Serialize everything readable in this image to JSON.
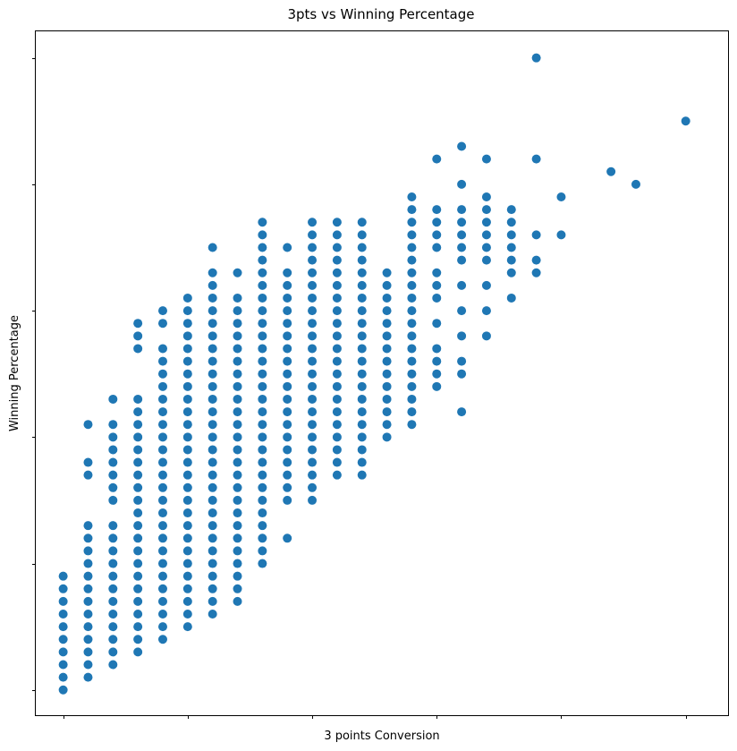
{
  "chart_data": {
    "type": "scatter",
    "title": "3pts vs Winning Percentage",
    "xlabel": "3 points Conversion",
    "ylabel": "Winning Percentage",
    "x_tick_labels": [],
    "y_tick_labels": [],
    "xlim": [
      -2.2,
      53.4
    ],
    "ylim": [
      -2.0,
      52.1
    ],
    "grid": false,
    "legend": "none",
    "marker_color": "#1f77b4",
    "x_ticks": [
      0,
      10,
      20,
      30,
      40,
      50
    ],
    "y_ticks": [
      0,
      10,
      20,
      30,
      40,
      50
    ],
    "points": [
      [
        0,
        0
      ],
      [
        0,
        1
      ],
      [
        0,
        2
      ],
      [
        0,
        3
      ],
      [
        0,
        4
      ],
      [
        0,
        5
      ],
      [
        0,
        6
      ],
      [
        0,
        7
      ],
      [
        0,
        8
      ],
      [
        0,
        9
      ],
      [
        2,
        1
      ],
      [
        2,
        2
      ],
      [
        2,
        3
      ],
      [
        2,
        4
      ],
      [
        2,
        5
      ],
      [
        2,
        6
      ],
      [
        2,
        7
      ],
      [
        2,
        8
      ],
      [
        2,
        9
      ],
      [
        2,
        10
      ],
      [
        2,
        11
      ],
      [
        2,
        12
      ],
      [
        2,
        13
      ],
      [
        2,
        17
      ],
      [
        2,
        18
      ],
      [
        2,
        21
      ],
      [
        4,
        2
      ],
      [
        4,
        3
      ],
      [
        4,
        4
      ],
      [
        4,
        5
      ],
      [
        4,
        6
      ],
      [
        4,
        7
      ],
      [
        4,
        8
      ],
      [
        4,
        9
      ],
      [
        4,
        10
      ],
      [
        4,
        11
      ],
      [
        4,
        12
      ],
      [
        4,
        13
      ],
      [
        4,
        15
      ],
      [
        4,
        16
      ],
      [
        4,
        17
      ],
      [
        4,
        18
      ],
      [
        4,
        19
      ],
      [
        4,
        20
      ],
      [
        4,
        21
      ],
      [
        4,
        23
      ],
      [
        6,
        3
      ],
      [
        6,
        4
      ],
      [
        6,
        5
      ],
      [
        6,
        6
      ],
      [
        6,
        7
      ],
      [
        6,
        8
      ],
      [
        6,
        9
      ],
      [
        6,
        10
      ],
      [
        6,
        11
      ],
      [
        6,
        12
      ],
      [
        6,
        13
      ],
      [
        6,
        14
      ],
      [
        6,
        15
      ],
      [
        6,
        16
      ],
      [
        6,
        17
      ],
      [
        6,
        18
      ],
      [
        6,
        19
      ],
      [
        6,
        20
      ],
      [
        6,
        21
      ],
      [
        6,
        22
      ],
      [
        6,
        23
      ],
      [
        6,
        27
      ],
      [
        6,
        28
      ],
      [
        6,
        29
      ],
      [
        8,
        4
      ],
      [
        8,
        5
      ],
      [
        8,
        6
      ],
      [
        8,
        7
      ],
      [
        8,
        8
      ],
      [
        8,
        9
      ],
      [
        8,
        10
      ],
      [
        8,
        11
      ],
      [
        8,
        12
      ],
      [
        8,
        13
      ],
      [
        8,
        14
      ],
      [
        8,
        15
      ],
      [
        8,
        16
      ],
      [
        8,
        17
      ],
      [
        8,
        18
      ],
      [
        8,
        19
      ],
      [
        8,
        20
      ],
      [
        8,
        21
      ],
      [
        8,
        22
      ],
      [
        8,
        23
      ],
      [
        8,
        24
      ],
      [
        8,
        25
      ],
      [
        8,
        26
      ],
      [
        8,
        27
      ],
      [
        8,
        29
      ],
      [
        8,
        30
      ],
      [
        10,
        5
      ],
      [
        10,
        6
      ],
      [
        10,
        7
      ],
      [
        10,
        8
      ],
      [
        10,
        9
      ],
      [
        10,
        10
      ],
      [
        10,
        11
      ],
      [
        10,
        12
      ],
      [
        10,
        13
      ],
      [
        10,
        14
      ],
      [
        10,
        15
      ],
      [
        10,
        16
      ],
      [
        10,
        17
      ],
      [
        10,
        18
      ],
      [
        10,
        19
      ],
      [
        10,
        20
      ],
      [
        10,
        21
      ],
      [
        10,
        22
      ],
      [
        10,
        23
      ],
      [
        10,
        24
      ],
      [
        10,
        25
      ],
      [
        10,
        26
      ],
      [
        10,
        27
      ],
      [
        10,
        28
      ],
      [
        10,
        29
      ],
      [
        10,
        30
      ],
      [
        10,
        31
      ],
      [
        12,
        6
      ],
      [
        12,
        7
      ],
      [
        12,
        8
      ],
      [
        12,
        9
      ],
      [
        12,
        10
      ],
      [
        12,
        11
      ],
      [
        12,
        12
      ],
      [
        12,
        13
      ],
      [
        12,
        14
      ],
      [
        12,
        15
      ],
      [
        12,
        16
      ],
      [
        12,
        17
      ],
      [
        12,
        18
      ],
      [
        12,
        19
      ],
      [
        12,
        20
      ],
      [
        12,
        21
      ],
      [
        12,
        22
      ],
      [
        12,
        23
      ],
      [
        12,
        24
      ],
      [
        12,
        25
      ],
      [
        12,
        26
      ],
      [
        12,
        27
      ],
      [
        12,
        28
      ],
      [
        12,
        29
      ],
      [
        12,
        30
      ],
      [
        12,
        31
      ],
      [
        12,
        32
      ],
      [
        12,
        33
      ],
      [
        12,
        35
      ],
      [
        14,
        7
      ],
      [
        14,
        8
      ],
      [
        14,
        9
      ],
      [
        14,
        10
      ],
      [
        14,
        11
      ],
      [
        14,
        12
      ],
      [
        14,
        13
      ],
      [
        14,
        14
      ],
      [
        14,
        15
      ],
      [
        14,
        16
      ],
      [
        14,
        17
      ],
      [
        14,
        18
      ],
      [
        14,
        19
      ],
      [
        14,
        20
      ],
      [
        14,
        21
      ],
      [
        14,
        22
      ],
      [
        14,
        23
      ],
      [
        14,
        24
      ],
      [
        14,
        25
      ],
      [
        14,
        26
      ],
      [
        14,
        27
      ],
      [
        14,
        28
      ],
      [
        14,
        29
      ],
      [
        14,
        30
      ],
      [
        14,
        31
      ],
      [
        14,
        33
      ],
      [
        16,
        10
      ],
      [
        16,
        11
      ],
      [
        16,
        12
      ],
      [
        16,
        13
      ],
      [
        16,
        14
      ],
      [
        16,
        15
      ],
      [
        16,
        16
      ],
      [
        16,
        17
      ],
      [
        16,
        18
      ],
      [
        16,
        19
      ],
      [
        16,
        20
      ],
      [
        16,
        21
      ],
      [
        16,
        22
      ],
      [
        16,
        23
      ],
      [
        16,
        24
      ],
      [
        16,
        25
      ],
      [
        16,
        26
      ],
      [
        16,
        27
      ],
      [
        16,
        28
      ],
      [
        16,
        29
      ],
      [
        16,
        30
      ],
      [
        16,
        31
      ],
      [
        16,
        32
      ],
      [
        16,
        33
      ],
      [
        16,
        34
      ],
      [
        16,
        35
      ],
      [
        16,
        36
      ],
      [
        16,
        37
      ],
      [
        18,
        12
      ],
      [
        18,
        15
      ],
      [
        18,
        16
      ],
      [
        18,
        17
      ],
      [
        18,
        18
      ],
      [
        18,
        19
      ],
      [
        18,
        20
      ],
      [
        18,
        21
      ],
      [
        18,
        22
      ],
      [
        18,
        23
      ],
      [
        18,
        24
      ],
      [
        18,
        25
      ],
      [
        18,
        26
      ],
      [
        18,
        27
      ],
      [
        18,
        28
      ],
      [
        18,
        29
      ],
      [
        18,
        30
      ],
      [
        18,
        31
      ],
      [
        18,
        32
      ],
      [
        18,
        33
      ],
      [
        18,
        35
      ],
      [
        20,
        15
      ],
      [
        20,
        16
      ],
      [
        20,
        17
      ],
      [
        20,
        18
      ],
      [
        20,
        19
      ],
      [
        20,
        20
      ],
      [
        20,
        21
      ],
      [
        20,
        22
      ],
      [
        20,
        23
      ],
      [
        20,
        24
      ],
      [
        20,
        25
      ],
      [
        20,
        26
      ],
      [
        20,
        27
      ],
      [
        20,
        28
      ],
      [
        20,
        29
      ],
      [
        20,
        30
      ],
      [
        20,
        31
      ],
      [
        20,
        32
      ],
      [
        20,
        33
      ],
      [
        20,
        34
      ],
      [
        20,
        35
      ],
      [
        20,
        36
      ],
      [
        20,
        37
      ],
      [
        22,
        17
      ],
      [
        22,
        18
      ],
      [
        22,
        19
      ],
      [
        22,
        20
      ],
      [
        22,
        21
      ],
      [
        22,
        22
      ],
      [
        22,
        23
      ],
      [
        22,
        24
      ],
      [
        22,
        25
      ],
      [
        22,
        26
      ],
      [
        22,
        27
      ],
      [
        22,
        28
      ],
      [
        22,
        29
      ],
      [
        22,
        30
      ],
      [
        22,
        31
      ],
      [
        22,
        32
      ],
      [
        22,
        33
      ],
      [
        22,
        34
      ],
      [
        22,
        35
      ],
      [
        22,
        36
      ],
      [
        22,
        37
      ],
      [
        24,
        17
      ],
      [
        24,
        18
      ],
      [
        24,
        19
      ],
      [
        24,
        20
      ],
      [
        24,
        21
      ],
      [
        24,
        22
      ],
      [
        24,
        23
      ],
      [
        24,
        24
      ],
      [
        24,
        25
      ],
      [
        24,
        26
      ],
      [
        24,
        27
      ],
      [
        24,
        28
      ],
      [
        24,
        29
      ],
      [
        24,
        30
      ],
      [
        24,
        31
      ],
      [
        24,
        32
      ],
      [
        24,
        33
      ],
      [
        24,
        34
      ],
      [
        24,
        35
      ],
      [
        24,
        36
      ],
      [
        24,
        37
      ],
      [
        26,
        20
      ],
      [
        26,
        21
      ],
      [
        26,
        22
      ],
      [
        26,
        23
      ],
      [
        26,
        24
      ],
      [
        26,
        25
      ],
      [
        26,
        26
      ],
      [
        26,
        27
      ],
      [
        26,
        28
      ],
      [
        26,
        29
      ],
      [
        26,
        30
      ],
      [
        26,
        31
      ],
      [
        26,
        32
      ],
      [
        26,
        33
      ],
      [
        28,
        21
      ],
      [
        28,
        22
      ],
      [
        28,
        23
      ],
      [
        28,
        24
      ],
      [
        28,
        25
      ],
      [
        28,
        26
      ],
      [
        28,
        27
      ],
      [
        28,
        28
      ],
      [
        28,
        29
      ],
      [
        28,
        30
      ],
      [
        28,
        31
      ],
      [
        28,
        32
      ],
      [
        28,
        33
      ],
      [
        28,
        34
      ],
      [
        28,
        35
      ],
      [
        28,
        36
      ],
      [
        28,
        37
      ],
      [
        28,
        38
      ],
      [
        28,
        39
      ],
      [
        30,
        24
      ],
      [
        30,
        25
      ],
      [
        30,
        26
      ],
      [
        30,
        27
      ],
      [
        30,
        29
      ],
      [
        30,
        31
      ],
      [
        30,
        32
      ],
      [
        30,
        33
      ],
      [
        30,
        35
      ],
      [
        30,
        36
      ],
      [
        30,
        37
      ],
      [
        30,
        38
      ],
      [
        30,
        42
      ],
      [
        32,
        22
      ],
      [
        32,
        25
      ],
      [
        32,
        26
      ],
      [
        32,
        28
      ],
      [
        32,
        30
      ],
      [
        32,
        32
      ],
      [
        32,
        34
      ],
      [
        32,
        35
      ],
      [
        32,
        36
      ],
      [
        32,
        37
      ],
      [
        32,
        38
      ],
      [
        32,
        40
      ],
      [
        32,
        43
      ],
      [
        34,
        28
      ],
      [
        34,
        30
      ],
      [
        34,
        32
      ],
      [
        34,
        34
      ],
      [
        34,
        35
      ],
      [
        34,
        36
      ],
      [
        34,
        37
      ],
      [
        34,
        38
      ],
      [
        34,
        39
      ],
      [
        34,
        42
      ],
      [
        36,
        31
      ],
      [
        36,
        33
      ],
      [
        36,
        34
      ],
      [
        36,
        35
      ],
      [
        36,
        36
      ],
      [
        36,
        37
      ],
      [
        36,
        38
      ],
      [
        38,
        33
      ],
      [
        38,
        34
      ],
      [
        38,
        36
      ],
      [
        38,
        42
      ],
      [
        38,
        50
      ],
      [
        40,
        36
      ],
      [
        40,
        39
      ],
      [
        44,
        41
      ],
      [
        46,
        40
      ],
      [
        50,
        45
      ]
    ]
  }
}
